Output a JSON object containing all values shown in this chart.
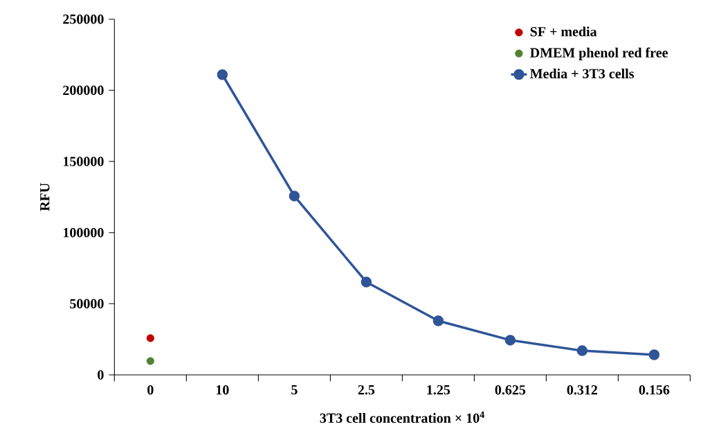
{
  "chart_data": {
    "type": "line",
    "xlabel": "3T3 cell concentration × 10$^{4}$",
    "ylabel": "RFU",
    "categories": [
      "0",
      "10",
      "5",
      "2.5",
      "1.25",
      "0.625",
      "0.312",
      "0.156"
    ],
    "series": [
      {
        "name": "SF + media",
        "type": "scatter",
        "color": "#c00000",
        "values": [
          25800,
          null,
          null,
          null,
          null,
          null,
          null,
          null
        ]
      },
      {
        "name": "DMEM phenol red free",
        "type": "scatter",
        "color": "#548235",
        "values": [
          9700,
          null,
          null,
          null,
          null,
          null,
          null,
          null
        ]
      },
      {
        "name": "Media + 3T3 cells",
        "color": "#2f5597",
        "values": [
          null,
          211000,
          125700,
          65300,
          38000,
          24400,
          17000,
          14100
        ]
      }
    ],
    "ylim": [
      0,
      250000
    ],
    "yticks": [
      0,
      50000,
      100000,
      150000,
      200000,
      250000
    ],
    "marker": "circle",
    "line_style": "solid",
    "legend": "top right",
    "grid": false
  }
}
